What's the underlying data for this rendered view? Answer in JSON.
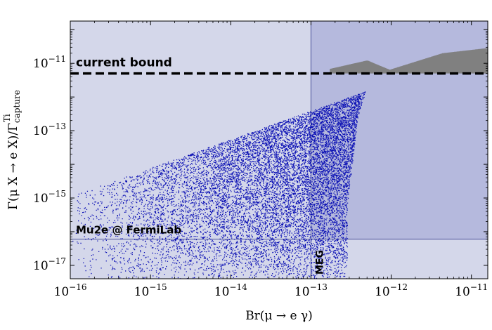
{
  "chart_data": {
    "type": "scatter",
    "xlabel": "Br(μ → e γ)",
    "ylabel": "Γ(μ X → e X)/Γ",
    "ylabel_sup": "Ti",
    "ylabel_sub": "capture",
    "xscale": "log",
    "yscale": "log",
    "xlim": [
      1e-16,
      1.6e-11
    ],
    "ylim": [
      4e-18,
      1.8e-10
    ],
    "xticks": [
      {
        "value": 1e-16,
        "label_base": "10",
        "label_exp": "−16"
      },
      {
        "value": 1e-15,
        "label_base": "10",
        "label_exp": "−15"
      },
      {
        "value": 1e-14,
        "label_base": "10",
        "label_exp": "−14"
      },
      {
        "value": 1e-13,
        "label_base": "10",
        "label_exp": "−13"
      },
      {
        "value": 1e-12,
        "label_base": "10",
        "label_exp": "−12"
      },
      {
        "value": 1e-11,
        "label_base": "10",
        "label_exp": "−11"
      }
    ],
    "yticks": [
      {
        "value": 1e-17,
        "label_base": "10",
        "label_exp": "−17"
      },
      {
        "value": 1e-15,
        "label_base": "10",
        "label_exp": "−15"
      },
      {
        "value": 1e-13,
        "label_base": "10",
        "label_exp": "−13"
      },
      {
        "value": 1e-11,
        "label_base": "10",
        "label_exp": "−11"
      }
    ],
    "regions": [
      {
        "label": "MEG",
        "x_min": 1e-13,
        "color": "#7f86c0"
      },
      {
        "label": "Mu2e @ FermiLab",
        "y_min": 6e-17,
        "color": "#b4b8dc"
      }
    ],
    "reference_lines": [
      {
        "label": "current bound",
        "y": 5e-12,
        "style": "dashed",
        "color": "#000000"
      }
    ],
    "series": [
      {
        "color": "#0a0fb4",
        "envelope": {
          "x_min": 1e-16,
          "x_max": 6e-12,
          "y_min": 4e-18,
          "y_max": 5e-12
        }
      },
      {
        "color": "#808080",
        "envelope": {
          "x_min": 2e-13,
          "x_max": 1.6e-11,
          "y_min": 5e-12,
          "y_max": 8e-11
        }
      }
    ],
    "grid": false,
    "legend": "none"
  }
}
